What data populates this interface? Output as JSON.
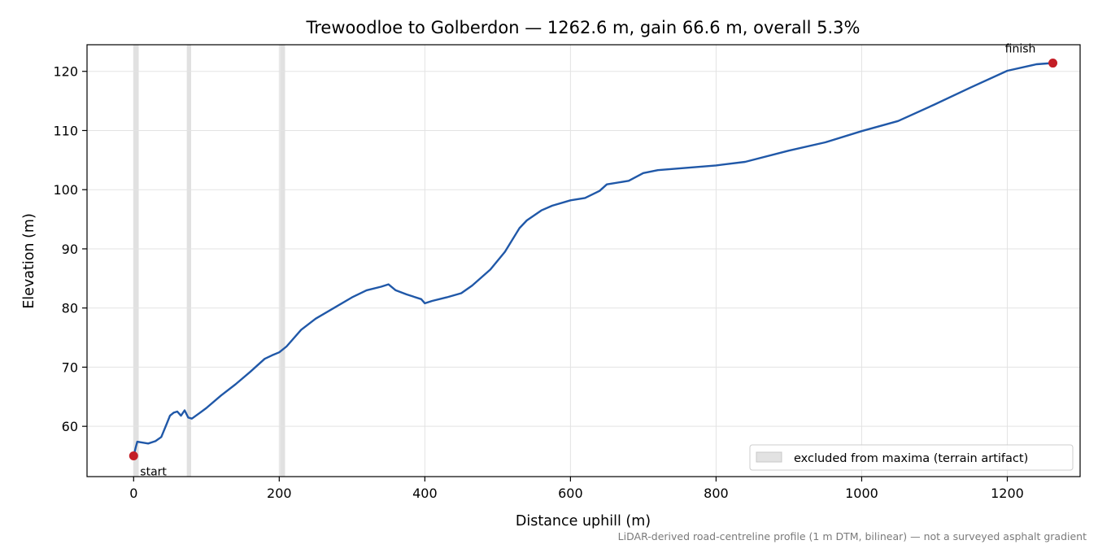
{
  "chart_data": {
    "type": "line",
    "title": "Trewoodloe to Golberdon — 1262.6 m, gain 66.6 m, overall 5.3%",
    "xlabel": "Distance uphill (m)",
    "ylabel": "Elevation (m)",
    "xlim": [
      -64,
      1300
    ],
    "ylim": [
      51.5,
      124.5
    ],
    "xticks": [
      0,
      200,
      400,
      600,
      800,
      1000,
      1200
    ],
    "yticks": [
      60,
      70,
      80,
      90,
      100,
      110,
      120
    ],
    "grid": true,
    "series": [
      {
        "color": "#2058a8",
        "x": [
          0,
          3,
          5,
          10,
          20,
          30,
          38,
          45,
          50,
          55,
          60,
          65,
          70,
          75,
          80,
          90,
          100,
          120,
          140,
          160,
          180,
          190,
          200,
          210,
          230,
          250,
          275,
          300,
          320,
          340,
          350,
          360,
          375,
          395,
          400,
          410,
          430,
          450,
          465,
          490,
          510,
          530,
          540,
          560,
          575,
          600,
          620,
          640,
          650,
          680,
          700,
          720,
          760,
          800,
          840,
          900,
          950,
          1000,
          1050,
          1100,
          1150,
          1200,
          1240,
          1262.6
        ],
        "y": [
          55.0,
          56.5,
          57.4,
          57.3,
          57.1,
          57.5,
          58.2,
          60.3,
          61.8,
          62.3,
          62.5,
          61.8,
          62.7,
          61.5,
          61.3,
          62.2,
          63.1,
          65.2,
          67.1,
          69.2,
          71.4,
          72.0,
          72.5,
          73.5,
          76.3,
          78.2,
          80.0,
          81.8,
          83.0,
          83.6,
          84.0,
          83.0,
          82.3,
          81.5,
          80.8,
          81.2,
          81.8,
          82.5,
          83.8,
          86.5,
          89.5,
          93.5,
          94.8,
          96.5,
          97.3,
          98.2,
          98.6,
          99.8,
          100.9,
          101.5,
          102.8,
          103.3,
          103.7,
          104.1,
          104.7,
          106.6,
          108.0,
          109.9,
          111.6,
          114.4,
          117.3,
          120.1,
          121.2,
          121.4
        ]
      }
    ],
    "excluded_bands": [
      [
        0,
        7
      ],
      [
        73,
        79
      ],
      [
        201,
        208
      ]
    ],
    "points": [
      {
        "label": "start",
        "x": 0,
        "y": 55.0,
        "color": "#c41e26"
      },
      {
        "label": "finish",
        "x": 1262.6,
        "y": 121.4,
        "color": "#c41e26"
      }
    ],
    "legend": {
      "label": "excluded from maxima (terrain artifact)",
      "placement": "lower-right",
      "swatch_color": "#e2e2e2"
    },
    "footnote": "LiDAR-derived road-centreline profile (1 m DTM, bilinear) — not a surveyed asphalt gradient"
  }
}
